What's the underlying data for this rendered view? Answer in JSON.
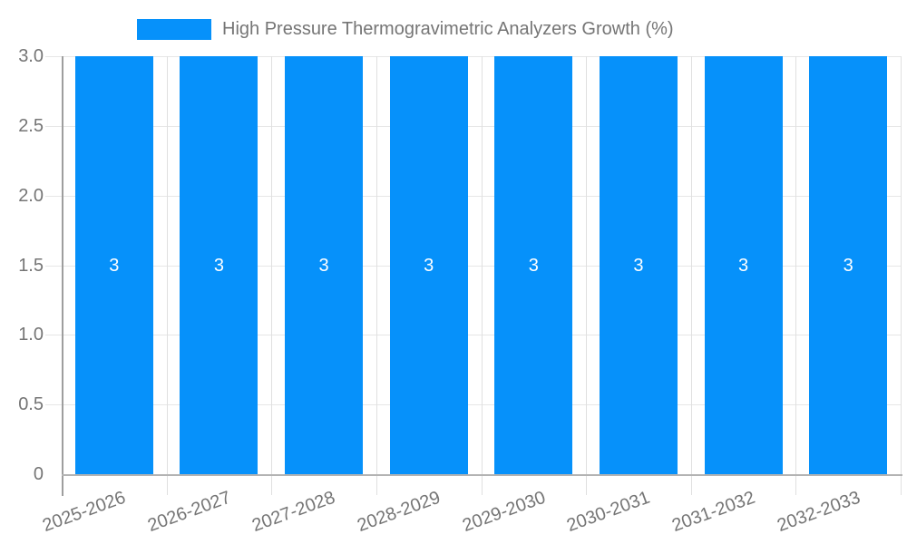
{
  "legend": {
    "label": "High Pressure Thermogravimetric Analyzers Growth (%)"
  },
  "chart_data": {
    "type": "bar",
    "title": "High Pressure Thermogravimetric Analyzers Growth (%)",
    "categories": [
      "2025-2026",
      "2026-2027",
      "2027-2028",
      "2028-2029",
      "2029-2030",
      "2030-2031",
      "2031-2032",
      "2032-2033"
    ],
    "values": [
      3,
      3,
      3,
      3,
      3,
      3,
      3,
      3
    ],
    "bar_labels": [
      "3",
      "3",
      "3",
      "3",
      "3",
      "3",
      "3",
      "3"
    ],
    "xlabel": "",
    "ylabel": "",
    "ylim": [
      0,
      3
    ],
    "ytick_values": [
      3,
      2.5,
      2,
      1.5,
      1,
      0.5,
      0
    ],
    "ytick_labels": [
      "3.0",
      "2.5",
      "2.0",
      "1.5",
      "1.0",
      "0.5",
      "0"
    ],
    "grid": true,
    "legend_position": "top",
    "colors": {
      "bar": "#0691FA",
      "bar_label": "#ffffff",
      "grid": "#e6e6e6",
      "separator": "#e0e0e0",
      "y_axis": "#9e9e9e",
      "x_axis": "#b3b3b3",
      "tick_text": "#757575"
    }
  }
}
